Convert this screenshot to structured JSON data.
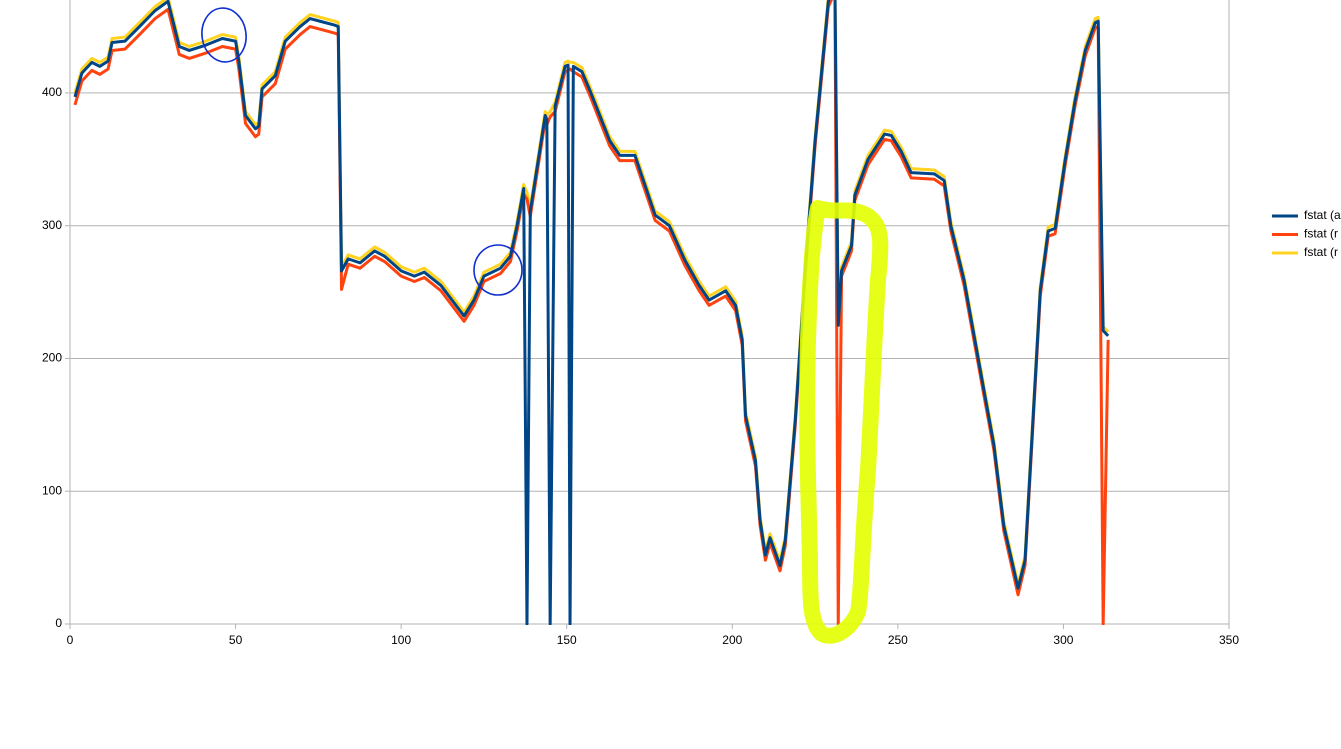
{
  "chart_data": {
    "type": "line",
    "x": [
      1.5,
      3.6,
      6.6,
      9,
      11.5,
      12.7,
      16.6,
      21,
      25.7,
      29.6,
      33,
      36,
      41,
      46,
      50,
      51,
      53,
      56,
      57,
      58,
      62,
      65,
      69.5,
      72.5,
      75.5,
      80,
      81,
      82,
      84,
      87.6,
      92,
      95,
      100,
      104,
      107,
      112,
      119,
      122,
      125,
      130,
      133,
      135,
      137,
      138,
      139,
      143.5,
      144,
      145,
      146.5,
      149.5,
      150.4,
      151,
      152,
      154.6,
      157,
      163,
      166,
      170.6,
      176.7,
      181,
      185.7,
      190,
      193,
      198,
      201,
      203,
      204,
      207,
      208.4,
      210,
      211.4,
      214.4,
      216,
      219,
      222,
      225,
      229,
      231,
      232,
      233,
      236,
      237,
      241,
      246,
      248,
      251,
      254,
      261,
      264,
      266,
      270,
      276,
      279,
      282,
      286.3,
      288.4,
      293,
      295.4,
      297.5,
      300.5,
      303.5,
      306.6,
      309.6,
      310.5,
      312,
      313.5
    ],
    "series": [
      {
        "name": "fstat (a",
        "color": "#004586",
        "values": [
          397,
          415,
          423,
          420,
          424,
          438,
          439,
          450,
          462,
          469,
          435,
          432,
          436,
          441,
          439,
          424,
          383,
          373,
          375,
          403,
          413,
          439,
          450,
          456,
          454,
          451,
          450,
          266,
          275,
          272,
          281,
          277,
          266,
          262,
          265,
          255,
          232,
          244,
          262,
          268,
          277,
          300,
          328,
          0,
          311,
          383,
          380,
          0,
          390,
          420,
          421,
          0,
          420,
          416,
          402,
          364,
          353,
          353,
          308,
          300,
          274,
          255,
          244,
          251,
          240,
          214,
          157,
          123,
          78,
          52,
          65,
          44,
          63,
          153,
          266,
          364,
          469,
          480,
          225,
          266,
          285,
          323,
          350,
          369,
          368,
          356,
          340,
          339,
          334,
          300,
          259,
          176,
          135,
          74,
          27,
          48,
          251,
          296,
          298,
          349,
          394,
          432,
          453,
          454,
          221,
          217
        ]
      },
      {
        "name": "fstat (r",
        "color": "#ff420e",
        "values": [
          391,
          409,
          417,
          414,
          418,
          432,
          433,
          444,
          456,
          463,
          429,
          426,
          430,
          435,
          433,
          418,
          377,
          367,
          369,
          397,
          407,
          433,
          444,
          450,
          448,
          445,
          444,
          252,
          271,
          268,
          277,
          273,
          262,
          258,
          261,
          251,
          228,
          240,
          258,
          264,
          273,
          296,
          324,
          320,
          307,
          379,
          376,
          382,
          386,
          416,
          417,
          418,
          416,
          412,
          398,
          360,
          349,
          349,
          304,
          296,
          270,
          251,
          240,
          247,
          236,
          210,
          153,
          119,
          74,
          48,
          61,
          40,
          59,
          149,
          262,
          360,
          465,
          476,
          0,
          262,
          281,
          319,
          346,
          365,
          364,
          352,
          336,
          335,
          330,
          296,
          255,
          172,
          131,
          70,
          22,
          44,
          247,
          292,
          294,
          345,
          390,
          428,
          449,
          450,
          0,
          214
        ]
      },
      {
        "name": "fstat (r",
        "color": "#ffd320",
        "values": [
          400,
          418,
          426,
          423,
          427,
          441,
          442,
          453,
          465,
          472,
          438,
          435,
          439,
          444,
          442,
          427,
          386,
          376,
          378,
          406,
          416,
          442,
          453,
          459,
          457,
          454,
          453,
          269,
          278,
          275,
          284,
          280,
          269,
          265,
          268,
          258,
          235,
          247,
          265,
          271,
          280,
          303,
          331,
          325,
          314,
          386,
          383,
          386,
          393,
          423,
          424,
          423,
          423,
          419,
          405,
          367,
          356,
          356,
          311,
          303,
          277,
          258,
          247,
          254,
          243,
          217,
          160,
          126,
          81,
          55,
          68,
          47,
          66,
          156,
          269,
          367,
          472,
          483,
          228,
          269,
          288,
          326,
          353,
          372,
          371,
          359,
          343,
          342,
          337,
          303,
          262,
          179,
          138,
          77,
          30,
          51,
          254,
          299,
          301,
          352,
          397,
          435,
          456,
          457,
          224,
          220
        ]
      }
    ],
    "xlim": [
      0,
      350
    ],
    "xticks": [
      0,
      50,
      100,
      150,
      200,
      250,
      300,
      350
    ],
    "ylim": [
      0,
      470
    ],
    "yticks": [
      0,
      100,
      200,
      300,
      400
    ],
    "grid": true,
    "legend": "right"
  }
}
